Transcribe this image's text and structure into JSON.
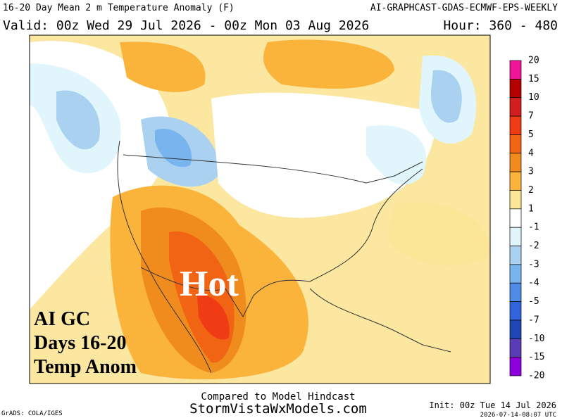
{
  "header": {
    "title_left": "16-20 Day Mean 2 m Temperature Anomaly (F)",
    "title_right": "AI-GRAPHCAST-GDAS-ECMWF-EPS-WEEKLY",
    "valid": "Valid: 00z Wed 29 Jul 2026 - 00z Mon 03 Aug 2026",
    "hour": "Hour: 360 - 480"
  },
  "map": {
    "overlay": "Hot",
    "annotation": [
      "AI GC",
      "Days 16-20",
      "Temp Anom"
    ]
  },
  "colorbar": {
    "labels": [
      "20",
      "15",
      "10",
      "7",
      "5",
      "4",
      "3",
      "2",
      "1",
      "-1",
      "-2",
      "-3",
      "-4",
      "-5",
      "-7",
      "-10",
      "-15",
      "-20"
    ],
    "colors": [
      "#f0149b",
      "#b40000",
      "#d21e1e",
      "#f03c14",
      "#f06414",
      "#f08c1e",
      "#fab43c",
      "#fae696",
      "#ffffff",
      "#e1f5fc",
      "#aad2f0",
      "#78b4ee",
      "#508ce6",
      "#3264dc",
      "#1e46b4",
      "#5a3cb4",
      "#8c00dc"
    ]
  },
  "footer": {
    "compared": "Compared to Model Hindcast",
    "site": "StormVistaWxModels.com",
    "credit": "GrADS: COLA/IGES",
    "init": "Init: 00z Tue 14 Jul 2026",
    "timestamp": "2026-07-14-08:07 UTC"
  }
}
